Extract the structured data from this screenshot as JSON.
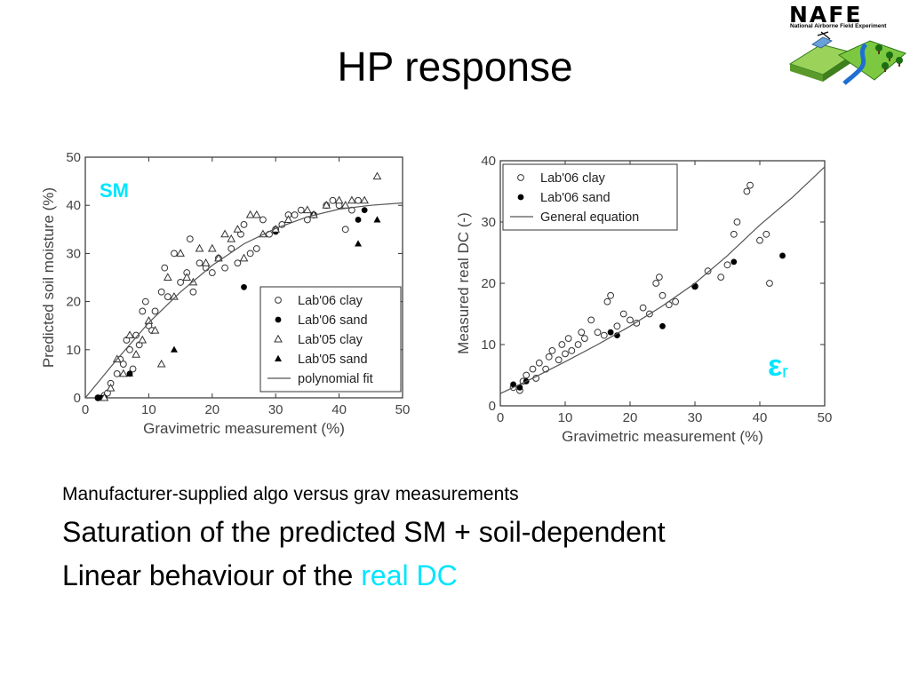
{
  "slide": {
    "title": "HP response",
    "logo": {
      "wordmark": "NAFE",
      "subtitle": "National Airborne Field Experiment"
    },
    "bullets": [
      {
        "text": "Manufacturer-supplied algo versus grav measurements"
      },
      {
        "text": "Saturation of the predicted SM + soil-dependent"
      },
      {
        "text": "Linear behaviour of the ",
        "highlight": "real DC",
        "highlight_color": "#00e5ff"
      }
    ]
  },
  "chart_data": [
    {
      "type": "scatter",
      "tag": "SM",
      "tag_color": "#00e5ff",
      "xlabel": "Gravimetric measurement (%)",
      "ylabel": "Predicted soil moisture (%)",
      "xlim": [
        0,
        50
      ],
      "ylim": [
        0,
        50
      ],
      "xticks": [
        0,
        10,
        20,
        30,
        40,
        50
      ],
      "yticks": [
        0,
        10,
        20,
        30,
        40,
        50
      ],
      "legend_position": "bottom-right",
      "series": [
        {
          "name": "Lab'06 clay",
          "marker": "open-circle",
          "points": [
            [
              2,
              0
            ],
            [
              3,
              0.5
            ],
            [
              3.5,
              1
            ],
            [
              4,
              3
            ],
            [
              5,
              5
            ],
            [
              5.5,
              8
            ],
            [
              6,
              7
            ],
            [
              6.5,
              12
            ],
            [
              7,
              10
            ],
            [
              7.5,
              6
            ],
            [
              8,
              13
            ],
            [
              8.5,
              11
            ],
            [
              9,
              18
            ],
            [
              9.5,
              20
            ],
            [
              10,
              15
            ],
            [
              10.5,
              14
            ],
            [
              11,
              18
            ],
            [
              12,
              22
            ],
            [
              12.5,
              27
            ],
            [
              13,
              21
            ],
            [
              14,
              30
            ],
            [
              15,
              24
            ],
            [
              16,
              26
            ],
            [
              16.5,
              33
            ],
            [
              17,
              22
            ],
            [
              18,
              28
            ],
            [
              19,
              27
            ],
            [
              20,
              26
            ],
            [
              21,
              29
            ],
            [
              22,
              27
            ],
            [
              23,
              31
            ],
            [
              24,
              28
            ],
            [
              24.5,
              34
            ],
            [
              25,
              36
            ],
            [
              26,
              30
            ],
            [
              27,
              31
            ],
            [
              28,
              37
            ],
            [
              29,
              34
            ],
            [
              30,
              35
            ],
            [
              31,
              36
            ],
            [
              32,
              38
            ],
            [
              33,
              38
            ],
            [
              34,
              39
            ],
            [
              35,
              37
            ],
            [
              36,
              38
            ],
            [
              38,
              40
            ],
            [
              39,
              41
            ],
            [
              40,
              40
            ],
            [
              41,
              35
            ],
            [
              42,
              39
            ],
            [
              43,
              41
            ]
          ]
        },
        {
          "name": "Lab'06 sand",
          "marker": "filled-circle",
          "points": [
            [
              2,
              0
            ],
            [
              2.5,
              0
            ],
            [
              3,
              0
            ],
            [
              7,
              5
            ],
            [
              25,
              23
            ],
            [
              30,
              34.5
            ],
            [
              36,
              38
            ],
            [
              43,
              37
            ],
            [
              44,
              39
            ]
          ]
        },
        {
          "name": "Lab'05 clay",
          "marker": "open-triangle",
          "points": [
            [
              3,
              0
            ],
            [
              4,
              2
            ],
            [
              5,
              8
            ],
            [
              6,
              5
            ],
            [
              7,
              13
            ],
            [
              8,
              9
            ],
            [
              9,
              12
            ],
            [
              10,
              16
            ],
            [
              11,
              14
            ],
            [
              12,
              7
            ],
            [
              13,
              25
            ],
            [
              14,
              21
            ],
            [
              15,
              30
            ],
            [
              16,
              25
            ],
            [
              17,
              24
            ],
            [
              18,
              31
            ],
            [
              19,
              28
            ],
            [
              20,
              31
            ],
            [
              21,
              29
            ],
            [
              22,
              34
            ],
            [
              23,
              33
            ],
            [
              24,
              35
            ],
            [
              25,
              29
            ],
            [
              26,
              38
            ],
            [
              27,
              38
            ],
            [
              28,
              34
            ],
            [
              30,
              35
            ],
            [
              32,
              37
            ],
            [
              35,
              39
            ],
            [
              36,
              38
            ],
            [
              38,
              40
            ],
            [
              40,
              41
            ],
            [
              41,
              40
            ],
            [
              42,
              41
            ],
            [
              44,
              41
            ],
            [
              46,
              46
            ]
          ]
        },
        {
          "name": "Lab'05 sand",
          "marker": "filled-triangle",
          "points": [
            [
              7,
              5
            ],
            [
              14,
              10
            ],
            [
              43,
              32
            ],
            [
              46,
              37
            ]
          ]
        },
        {
          "name": "polynomial fit",
          "marker": "line",
          "points": [
            [
              0,
              0
            ],
            [
              5,
              8
            ],
            [
              10,
              15.6
            ],
            [
              15,
              22
            ],
            [
              20,
              27.5
            ],
            [
              25,
              32
            ],
            [
              30,
              35.2
            ],
            [
              35,
              37.6
            ],
            [
              40,
              39.2
            ],
            [
              45,
              40
            ],
            [
              50,
              40.5
            ]
          ]
        }
      ]
    },
    {
      "type": "scatter",
      "tag": "ε",
      "tag_sub": "r",
      "tag_color": "#00e5ff",
      "xlabel": "Gravimetric measurement (%)",
      "ylabel": "Measured real DC (-)",
      "xlim": [
        0,
        50
      ],
      "ylim": [
        0,
        40
      ],
      "xticks": [
        0,
        10,
        20,
        30,
        40,
        50
      ],
      "yticks": [
        0,
        10,
        20,
        30,
        40
      ],
      "legend_position": "top-left",
      "series": [
        {
          "name": "Lab'06 clay",
          "marker": "open-circle",
          "points": [
            [
              2,
              3
            ],
            [
              3,
              2.5
            ],
            [
              3.5,
              4
            ],
            [
              4,
              5
            ],
            [
              5,
              6
            ],
            [
              5.5,
              4.5
            ],
            [
              6,
              7
            ],
            [
              7,
              6
            ],
            [
              7.5,
              8
            ],
            [
              8,
              9
            ],
            [
              9,
              7.5
            ],
            [
              9.5,
              10
            ],
            [
              10,
              8.5
            ],
            [
              10.5,
              11
            ],
            [
              11,
              9
            ],
            [
              12,
              10
            ],
            [
              12.5,
              12
            ],
            [
              13,
              11
            ],
            [
              14,
              14
            ],
            [
              15,
              12
            ],
            [
              16,
              11.5
            ],
            [
              16.5,
              17
            ],
            [
              17,
              18
            ],
            [
              18,
              13
            ],
            [
              19,
              15
            ],
            [
              20,
              14
            ],
            [
              21,
              13.5
            ],
            [
              22,
              16
            ],
            [
              23,
              15
            ],
            [
              24,
              20
            ],
            [
              24.5,
              21
            ],
            [
              25,
              18
            ],
            [
              26,
              16.5
            ],
            [
              27,
              17
            ],
            [
              30,
              19.5
            ],
            [
              32,
              22
            ],
            [
              34,
              21
            ],
            [
              35,
              23
            ],
            [
              36,
              28
            ],
            [
              36.5,
              30
            ],
            [
              38,
              35
            ],
            [
              38.5,
              36
            ],
            [
              40,
              27
            ],
            [
              41,
              28
            ],
            [
              41.5,
              20
            ]
          ]
        },
        {
          "name": "Lab'06 sand",
          "marker": "filled-circle",
          "points": [
            [
              2,
              3.5
            ],
            [
              3,
              3
            ],
            [
              4,
              4
            ],
            [
              17,
              12
            ],
            [
              18,
              11.5
            ],
            [
              25,
              13
            ],
            [
              30,
              19.5
            ],
            [
              36,
              23.5
            ],
            [
              43.5,
              24.5
            ]
          ]
        },
        {
          "name": "General equation",
          "marker": "line",
          "points": [
            [
              0,
              2
            ],
            [
              5,
              4.5
            ],
            [
              10,
              7.2
            ],
            [
              15,
              10
            ],
            [
              20,
              13
            ],
            [
              25,
              16.3
            ],
            [
              30,
              20
            ],
            [
              35,
              24.5
            ],
            [
              40,
              29.5
            ],
            [
              45,
              34
            ],
            [
              50,
              39
            ]
          ]
        }
      ]
    }
  ]
}
